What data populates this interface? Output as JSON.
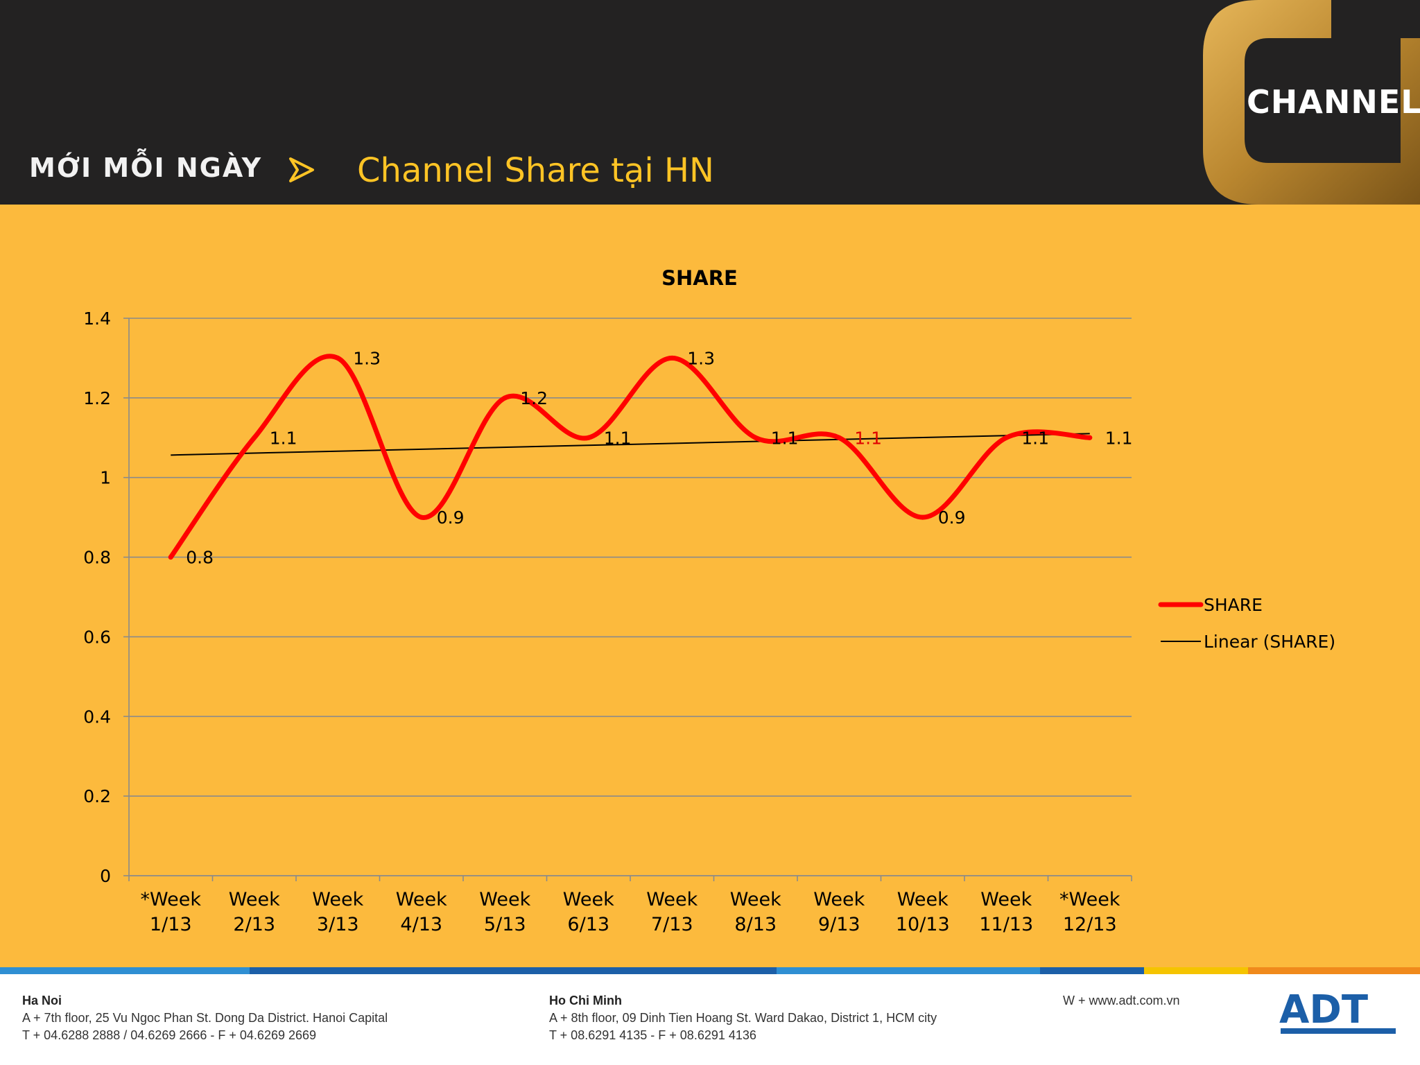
{
  "header": {
    "logo_text": "MỚI MỖI NGÀY",
    "title": "Channel Share tại HN",
    "brand_logo_text": "CHANNEL",
    "colors": {
      "background": "#232222",
      "title": "#FFC425",
      "logo_gold": "#C99A3E"
    }
  },
  "chart_data": {
    "type": "line",
    "title": "SHARE",
    "categories": [
      "*Week 1/13",
      "Week 2/13",
      "Week 3/13",
      "Week 4/13",
      "Week 5/13",
      "Week 6/13",
      "Week 7/13",
      "Week 8/13",
      "Week 9/13",
      "Week 10/13",
      "Week 11/13",
      "*Week 12/13"
    ],
    "series": [
      {
        "name": "SHARE",
        "values": [
          0.8,
          1.1,
          1.3,
          0.9,
          1.2,
          1.1,
          1.3,
          1.1,
          1.1,
          0.9,
          1.1,
          1.1
        ],
        "data_labels": [
          "0.8",
          "1.1",
          "1.3",
          "0.9",
          "1.2",
          "1.1",
          "1.3",
          "1.1",
          "1.1",
          "0.9",
          "1.1",
          "1.1"
        ],
        "color": "#FF0000",
        "highlight_label_index": 8
      }
    ],
    "trendline": {
      "name": "Linear (SHARE)",
      "type": "linear",
      "color": "#000000"
    },
    "yticks": [
      "0",
      "0.2",
      "0.4",
      "0.6",
      "0.8",
      "1",
      "1.2",
      "1.4"
    ],
    "ylim": [
      0,
      1.4
    ],
    "grid": true,
    "legend": "right",
    "xlabel": "",
    "ylabel": ""
  },
  "footer": {
    "hanoi": {
      "title": "Ha Noi",
      "address": "A + 7th floor, 25 Vu Ngoc Phan St. Dong Da District. Hanoi Capital",
      "phone": "T + 04.6288 2888 / 04.6269 2666 - F + 04.6269 2669"
    },
    "hcm": {
      "title": "Ho Chi Minh",
      "address": "A + 8th floor, 09 Dinh Tien Hoang St. Ward Dakao, District 1, HCM city",
      "phone": "T + 08.6291 4135 - F + 08.6291 4136"
    },
    "website": "W + www.adt.com.vn",
    "logo_text": "ADT",
    "colors": {
      "blue": "#1C5FA8",
      "light_blue": "#2F8FD3",
      "yellow": "#F5C400",
      "orange": "#F08A1C"
    }
  }
}
